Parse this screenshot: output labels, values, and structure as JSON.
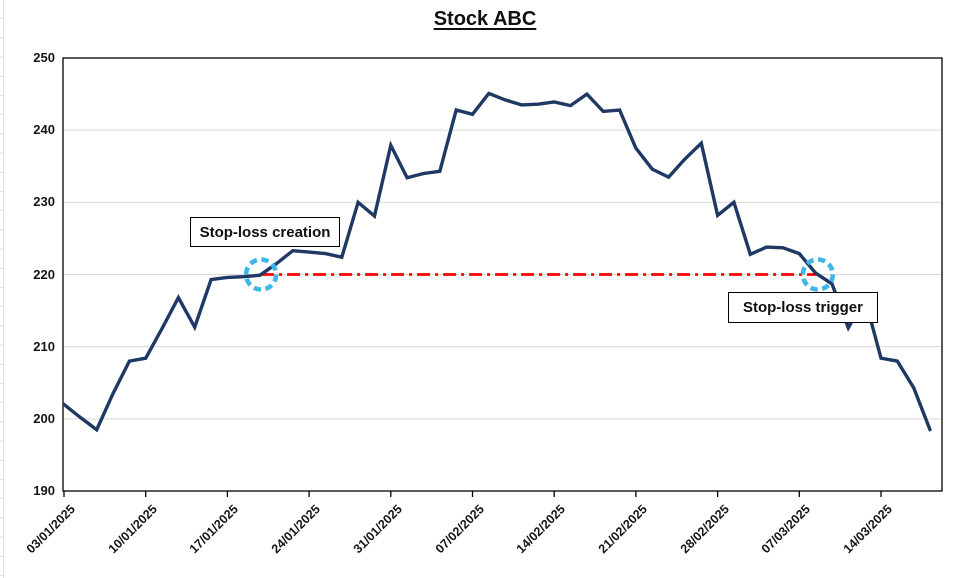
{
  "title": "Stock ABC",
  "colors": {
    "series_line": "#1F3864",
    "stop_loss_line": "#FF0000",
    "highlight_circle": "#3FB6E8",
    "gridline": "#D9D9D9",
    "axis": "#000000",
    "label_text": "#151515"
  },
  "chart_data": {
    "type": "line",
    "title": "Stock ABC",
    "xlabel": "",
    "ylabel": "",
    "ylim": [
      190,
      250
    ],
    "y_ticks": [
      190,
      200,
      210,
      220,
      230,
      240,
      250
    ],
    "x_tick_labels": [
      "03/01/2025",
      "10/01/2025",
      "17/01/2025",
      "24/01/2025",
      "31/01/2025",
      "07/02/2025",
      "14/02/2025",
      "21/02/2025",
      "28/02/2025",
      "07/03/2025",
      "14/03/2025"
    ],
    "points_per_x_tick": 5,
    "grid": "horizontal-only",
    "legend": "none",
    "stop_loss_level": 220,
    "series": [
      {
        "name": "Stock ABC",
        "values": [
          202.0,
          200.2,
          198.5,
          203.5,
          208.0,
          208.4,
          212.5,
          216.8,
          212.7,
          219.3,
          219.6,
          219.7,
          219.9,
          221.5,
          223.3,
          223.1,
          222.9,
          222.4,
          230.0,
          228.1,
          237.9,
          233.4,
          234.0,
          234.3,
          242.8,
          242.2,
          245.1,
          244.2,
          243.5,
          243.6,
          243.9,
          243.4,
          245.0,
          242.6,
          242.8,
          237.5,
          234.6,
          233.5,
          236.0,
          238.2,
          228.2,
          230.0,
          222.8,
          223.8,
          223.7,
          222.9,
          220.2,
          218.7,
          212.6,
          216.8,
          208.4,
          208.0,
          204.3,
          198.5
        ]
      }
    ],
    "annotations": [
      {
        "label": "Stop-loss creation",
        "type": "upward-cross-of-stop-level",
        "level": 220
      },
      {
        "label": "Stop-loss trigger",
        "type": "downward-cross-of-stop-level",
        "level": 220
      }
    ]
  }
}
